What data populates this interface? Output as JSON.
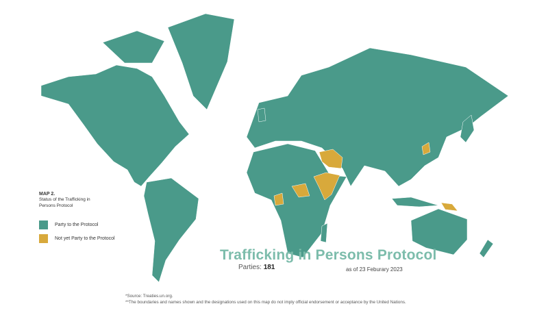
{
  "colors": {
    "party": "#4a9a8a",
    "not_party": "#d8a93b",
    "title": "#7cbcab"
  },
  "legend": {
    "map_label": "MAP 2.",
    "subtitle": "Status of the Trafficking in Persons Protocol",
    "items": [
      {
        "label": "Party to the Protocol",
        "color": "#4a9a8a"
      },
      {
        "label": "Not yet Party to the Protocol",
        "color": "#d8a93b"
      }
    ]
  },
  "title": "Trafficking in Persons Protocol",
  "parties": {
    "label": "Parties:",
    "count": "181"
  },
  "as_of": "as of 23 Feburary 2023",
  "footnotes": [
    "*Source: Treaties.un.org.",
    "**The boundaries and names shown and the designations used on this map do not imply official endorsement or acceptance by the United Nations."
  ]
}
